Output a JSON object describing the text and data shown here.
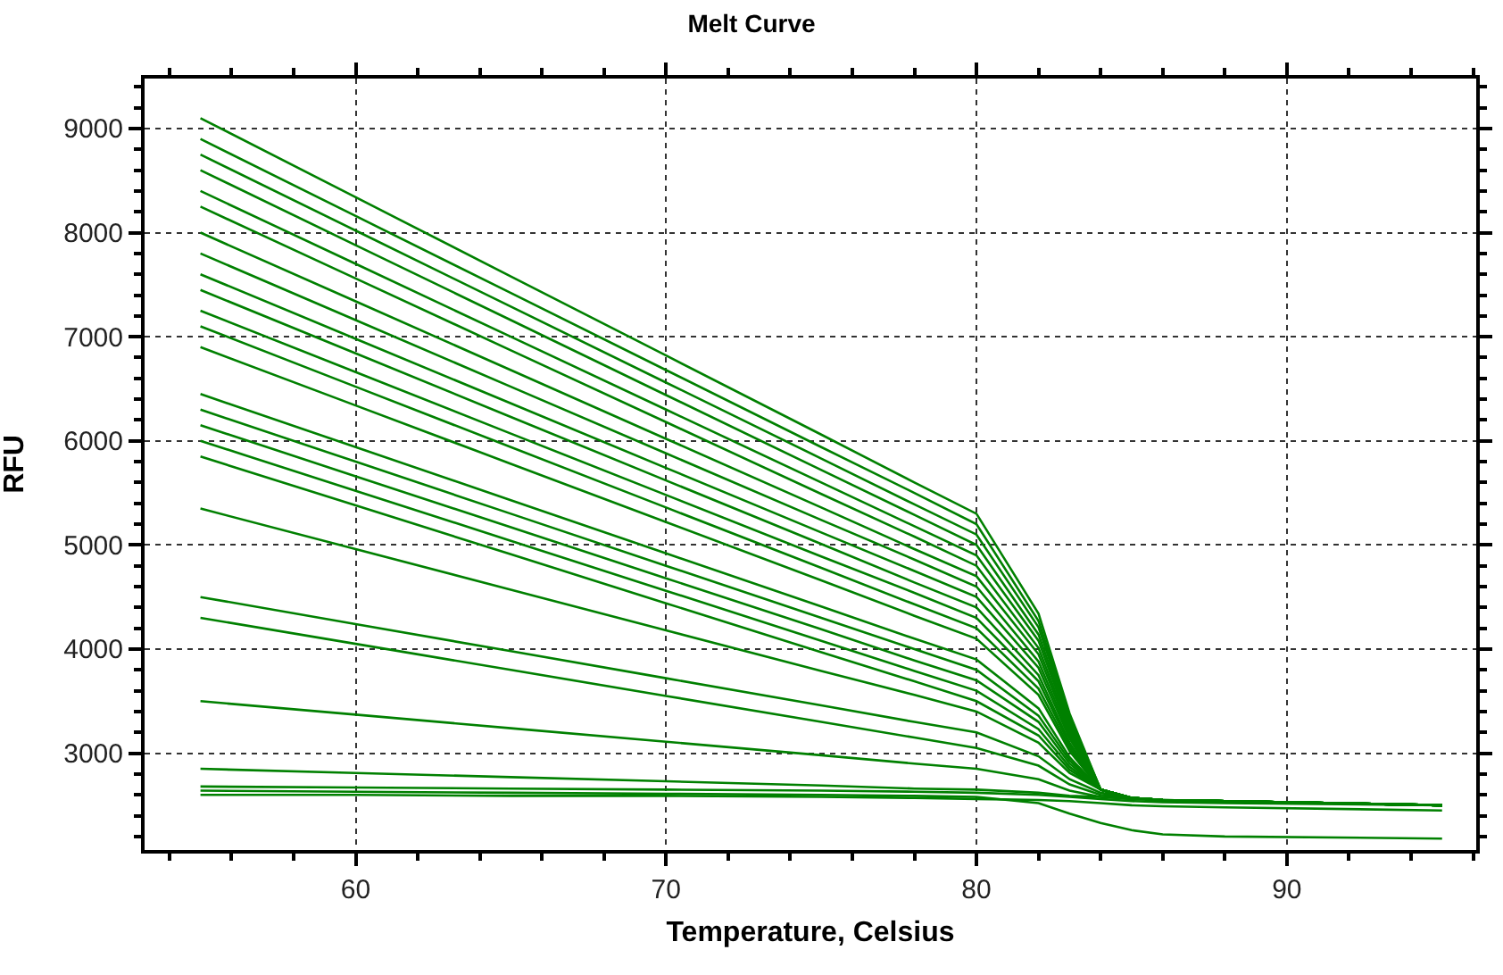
{
  "chart_data": {
    "type": "line",
    "title": "Melt Curve",
    "xlabel": "Temperature, Celsius",
    "ylabel": "RFU",
    "grid": true,
    "marker": "none",
    "line_style": "solid",
    "x": [
      55,
      60,
      65,
      70,
      75,
      78,
      80,
      82,
      83,
      84,
      85,
      86,
      88,
      95
    ],
    "xlim": [
      53.2,
      96.1
    ],
    "xticks": [
      {
        "value": 54,
        "label": null
      },
      {
        "value": 56,
        "label": null
      },
      {
        "value": 58,
        "label": null
      },
      60,
      {
        "value": 62,
        "label": null
      },
      {
        "value": 64,
        "label": null
      },
      {
        "value": 66,
        "label": null
      },
      {
        "value": 68,
        "label": null
      },
      70,
      {
        "value": 72,
        "label": null
      },
      {
        "value": 74,
        "label": null
      },
      {
        "value": 76,
        "label": null
      },
      {
        "value": 78,
        "label": null
      },
      80,
      {
        "value": 82,
        "label": null
      },
      {
        "value": 84,
        "label": null
      },
      {
        "value": 86,
        "label": null
      },
      {
        "value": 88,
        "label": null
      },
      90,
      {
        "value": 92,
        "label": null
      },
      {
        "value": 94,
        "label": null
      },
      {
        "value": 96,
        "label": null
      }
    ],
    "ylim": [
      2070,
      9480
    ],
    "yticks": [
      {
        "value": 2200,
        "label": null
      },
      {
        "value": 2400,
        "label": null
      },
      {
        "value": 2600,
        "label": null
      },
      {
        "value": 2800,
        "label": null
      },
      3000,
      {
        "value": 3200,
        "label": null
      },
      {
        "value": 3400,
        "label": null
      },
      {
        "value": 3600,
        "label": null
      },
      {
        "value": 3800,
        "label": null
      },
      4000,
      {
        "value": 4200,
        "label": null
      },
      {
        "value": 4400,
        "label": null
      },
      {
        "value": 4600,
        "label": null
      },
      {
        "value": 4800,
        "label": null
      },
      5000,
      {
        "value": 5200,
        "label": null
      },
      {
        "value": 5400,
        "label": null
      },
      {
        "value": 5600,
        "label": null
      },
      {
        "value": 5800,
        "label": null
      },
      6000,
      {
        "value": 6200,
        "label": null
      },
      {
        "value": 6400,
        "label": null
      },
      {
        "value": 6600,
        "label": null
      },
      {
        "value": 6800,
        "label": null
      },
      7000,
      {
        "value": 7200,
        "label": null
      },
      {
        "value": 7400,
        "label": null
      },
      {
        "value": 7600,
        "label": null
      },
      {
        "value": 7800,
        "label": null
      },
      8000,
      {
        "value": 8200,
        "label": null
      },
      {
        "value": 8400,
        "label": null
      },
      {
        "value": 8600,
        "label": null
      },
      {
        "value": 8800,
        "label": null
      },
      9000,
      {
        "value": 9200,
        "label": null
      },
      {
        "value": 9400,
        "label": null
      }
    ],
    "series": [
      {
        "color": "#008000",
        "values": [
          9100,
          8340,
          7580,
          6820,
          6060,
          5600,
          5300,
          4340,
          3380,
          2650,
          2570,
          2550,
          2540,
          2500
        ]
      },
      {
        "color": "#008000",
        "values": [
          8900,
          8160,
          7420,
          6680,
          5940,
          5500,
          5200,
          4270,
          3350,
          2650,
          2570,
          2550,
          2540,
          2500
        ]
      },
      {
        "color": "#008000",
        "values": [
          8750,
          8020,
          7290,
          6560,
          5830,
          5390,
          5100,
          4210,
          3320,
          2650,
          2570,
          2550,
          2540,
          2500
        ]
      },
      {
        "color": "#008000",
        "values": [
          8600,
          7880,
          7160,
          6440,
          5720,
          5290,
          5000,
          4140,
          3290,
          2650,
          2570,
          2550,
          2540,
          2500
        ]
      },
      {
        "color": "#008000",
        "values": [
          8400,
          7700,
          7000,
          6300,
          5600,
          5180,
          4900,
          4080,
          3260,
          2650,
          2570,
          2550,
          2540,
          2500
        ]
      },
      {
        "color": "#008000",
        "values": [
          8250,
          7560,
          6870,
          6180,
          5490,
          5080,
          4800,
          4010,
          3230,
          2650,
          2570,
          2550,
          2540,
          2500
        ]
      },
      {
        "color": "#008000",
        "values": [
          8000,
          7340,
          6680,
          6020,
          5360,
          4960,
          4700,
          3950,
          3200,
          2650,
          2570,
          2550,
          2540,
          2500
        ]
      },
      {
        "color": "#008000",
        "values": [
          7800,
          7160,
          6520,
          5880,
          5240,
          4860,
          4600,
          3880,
          3170,
          2650,
          2570,
          2550,
          2540,
          2500
        ]
      },
      {
        "color": "#008000",
        "values": [
          7600,
          6980,
          6360,
          5740,
          5120,
          4750,
          4500,
          3820,
          3140,
          2650,
          2570,
          2550,
          2540,
          2500
        ]
      },
      {
        "color": "#008000",
        "values": [
          7450,
          6840,
          6230,
          5620,
          5010,
          4640,
          4400,
          3750,
          3100,
          2650,
          2570,
          2550,
          2540,
          2500
        ]
      },
      {
        "color": "#008000",
        "values": [
          7250,
          6660,
          6070,
          5480,
          4890,
          4540,
          4300,
          3690,
          3080,
          2650,
          2570,
          2550,
          2540,
          2500
        ]
      },
      {
        "color": "#008000",
        "values": [
          7100,
          6520,
          5940,
          5360,
          4780,
          4430,
          4200,
          3620,
          3050,
          2650,
          2570,
          2550,
          2540,
          2500
        ]
      },
      {
        "color": "#008000",
        "values": [
          6900,
          6340,
          5780,
          5220,
          4660,
          4320,
          4100,
          3560,
          3020,
          2650,
          2570,
          2550,
          2540,
          2500
        ]
      },
      {
        "color": "#008000",
        "values": [
          6450,
          5940,
          5430,
          4920,
          4410,
          4100,
          3900,
          3430,
          2960,
          2650,
          2570,
          2550,
          2540,
          2500
        ]
      },
      {
        "color": "#008000",
        "values": [
          6300,
          5800,
          5300,
          4800,
          4300,
          4000,
          3800,
          3360,
          2930,
          2650,
          2570,
          2550,
          2540,
          2500
        ]
      },
      {
        "color": "#008000",
        "values": [
          6150,
          5660,
          5170,
          4680,
          4190,
          3890,
          3700,
          3300,
          2900,
          2650,
          2570,
          2550,
          2540,
          2500
        ]
      },
      {
        "color": "#008000",
        "values": [
          6000,
          5520,
          5040,
          4560,
          4080,
          3790,
          3600,
          3230,
          2870,
          2650,
          2570,
          2550,
          2540,
          2500
        ]
      },
      {
        "color": "#008000",
        "values": [
          5850,
          5380,
          4910,
          4440,
          3970,
          3690,
          3500,
          3170,
          2840,
          2650,
          2570,
          2550,
          2540,
          2500
        ]
      },
      {
        "color": "#008000",
        "values": [
          5350,
          4960,
          4570,
          4180,
          3790,
          3560,
          3400,
          3100,
          2810,
          2650,
          2570,
          2550,
          2540,
          2500
        ]
      },
      {
        "color": "#008000",
        "values": [
          4500,
          4240,
          3980,
          3720,
          3460,
          3300,
          3200,
          2970,
          2750,
          2620,
          2570,
          2550,
          2540,
          2500
        ]
      },
      {
        "color": "#008000",
        "values": [
          4300,
          4050,
          3800,
          3550,
          3300,
          3150,
          3050,
          2880,
          2700,
          2600,
          2570,
          2550,
          2540,
          2500
        ]
      },
      {
        "color": "#008000",
        "values": [
          3500,
          3370,
          3240,
          3110,
          2980,
          2900,
          2850,
          2750,
          2640,
          2580,
          2560,
          2550,
          2540,
          2500
        ]
      },
      {
        "color": "#008000",
        "values": [
          2850,
          2810,
          2770,
          2730,
          2690,
          2660,
          2650,
          2620,
          2590,
          2580,
          2560,
          2550,
          2540,
          2500
        ]
      },
      {
        "color": "#008000",
        "values": [
          2680,
          2670,
          2660,
          2650,
          2640,
          2630,
          2620,
          2600,
          2580,
          2560,
          2540,
          2530,
          2520,
          2500
        ]
      },
      {
        "color": "#008000",
        "values": [
          2600,
          2600,
          2590,
          2590,
          2580,
          2570,
          2560,
          2550,
          2540,
          2520,
          2500,
          2490,
          2480,
          2450
        ]
      },
      {
        "color": "#008000",
        "values": [
          2640,
          2630,
          2620,
          2610,
          2600,
          2590,
          2580,
          2520,
          2420,
          2330,
          2260,
          2220,
          2200,
          2180
        ]
      }
    ]
  }
}
